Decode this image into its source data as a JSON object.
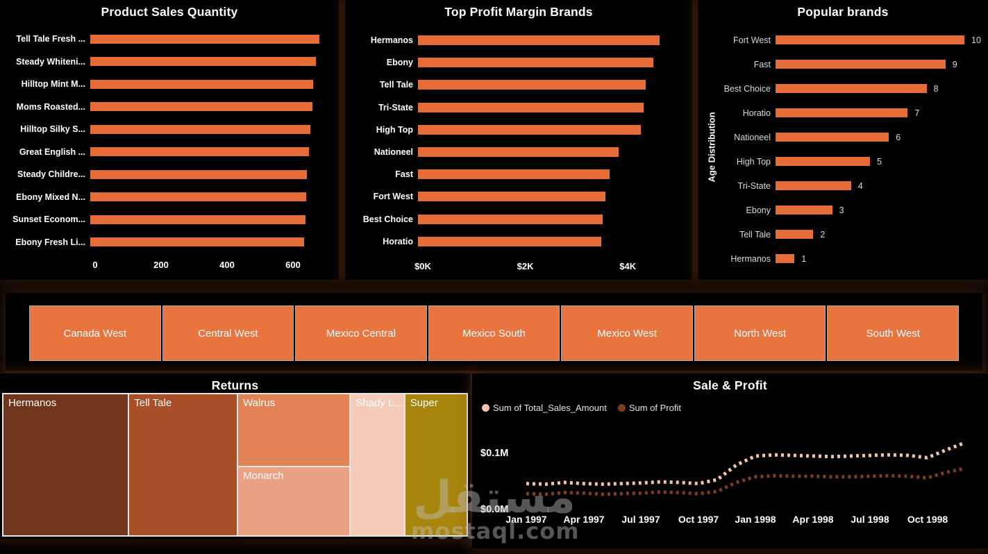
{
  "app": {
    "accent_color": "#E66C37",
    "background_color": "#000000"
  },
  "slicer": {
    "buttons": [
      "Canada West",
      "Central West",
      "Mexico Central",
      "Mexico South",
      "Mexico West",
      "North West",
      "South West"
    ],
    "button_color": "#E8743F"
  },
  "watermark": {
    "arabic": "مستقل",
    "latin": "mostaql.com"
  },
  "chart_data": [
    {
      "id": "product_sales",
      "type": "bar",
      "orientation": "horizontal",
      "title": "Product Sales Quantity",
      "categories": [
        "Tell Tale Fresh ...",
        "Steady Whiteni...",
        "Hilltop Mint M...",
        "Moms Roasted...",
        "Hilltop Silky S...",
        "Great English ...",
        "Steady Childre...",
        "Ebony Mixed N...",
        "Sunset Econom...",
        "Ebony Fresh Li..."
      ],
      "values": [
        695,
        685,
        676,
        673,
        667,
        664,
        657,
        654,
        652,
        648
      ],
      "xticks": {
        "values": [
          0,
          200,
          400,
          600
        ],
        "labels": [
          "0",
          "200",
          "400",
          "600"
        ]
      },
      "xlim": [
        0,
        730
      ],
      "bar_color": "#E66C37",
      "grid": false
    },
    {
      "id": "profit_margin",
      "type": "bar",
      "orientation": "horizontal",
      "title": "Top Profit Margin Brands",
      "categories": [
        "Hermanos",
        "Ebony",
        "Tell Tale",
        "Tri-State",
        "High Top",
        "Nationeel",
        "Fast",
        "Fort West",
        "Best Choice",
        "Horatio"
      ],
      "values": [
        4720,
        4600,
        4450,
        4400,
        4350,
        3910,
        3740,
        3660,
        3600,
        3580
      ],
      "xticks": {
        "values": [
          0,
          2000,
          4000
        ],
        "labels": [
          "$0K",
          "$2K",
          "$4K"
        ]
      },
      "xlim": [
        0,
        5100
      ],
      "bar_color": "#E66C37",
      "grid": false
    },
    {
      "id": "popular_brands",
      "type": "bar",
      "orientation": "horizontal",
      "title": "Popular brands",
      "ylabel": "Age Distribution",
      "categories": [
        "Fort West",
        "Fast",
        "Best Choice",
        "Horatio",
        "Nationeel",
        "High Top",
        "Tri-State",
        "Ebony",
        "Tell Tale",
        "Hermanos"
      ],
      "values": [
        10,
        9,
        8,
        7,
        6,
        5,
        4,
        3,
        2,
        1
      ],
      "data_labels": [
        "10",
        "9",
        "8",
        "7",
        "6",
        "5",
        "4",
        "3",
        "2",
        "1"
      ],
      "xlim": [
        0,
        11
      ],
      "bar_color": "#E66C37",
      "grid": false
    },
    {
      "id": "returns_treemap",
      "type": "treemap",
      "title": "Returns",
      "nodes": [
        {
          "label": "Hermanos",
          "share_pct": 27.2,
          "color": "#70361B"
        },
        {
          "label": "Tell Tale",
          "share_pct": 23.5,
          "color": "#A84E28"
        },
        {
          "label": "Walrus",
          "share_pct": 12.4,
          "color": "#E18355"
        },
        {
          "label": "Monarch",
          "share_pct": 11.9,
          "color": "#EBA184"
        },
        {
          "label": "Shady L...",
          "share_pct": 11.6,
          "color": "#F4CBB8"
        },
        {
          "label": "Super",
          "share_pct": 13.4,
          "color": "#A8860D"
        }
      ]
    },
    {
      "id": "sale_profit",
      "type": "line",
      "title": "Sale & Profit",
      "line_style": "dotted",
      "x": [
        "Jan 1997",
        "Feb 1997",
        "Mar 1997",
        "Apr 1997",
        "May 1997",
        "Jun 1997",
        "Jul 1997",
        "Aug 1997",
        "Sep 1997",
        "Oct 1997",
        "Nov 1997",
        "Dec 1997",
        "Jan 1998",
        "Feb 1998",
        "Mar 1998",
        "Apr 1998",
        "May 1998",
        "Jun 1998",
        "Jul 1998",
        "Aug 1998",
        "Sep 1998",
        "Oct 1998",
        "Nov 1998",
        "Dec 1998"
      ],
      "xticks": [
        "Jan 1997",
        "Apr 1997",
        "Jul 1997",
        "Oct 1997",
        "Jan 1998",
        "Apr 1998",
        "Jul 1998",
        "Oct 1998"
      ],
      "yticks": [
        {
          "label": "$0.0M",
          "value": 0
        },
        {
          "label": "$0.1M",
          "value": 0.1
        }
      ],
      "ylim": [
        0,
        0.125
      ],
      "legend_position": "top-left",
      "series": [
        {
          "name": "Sum of Total_Sales_Amount",
          "color": "#F2C3A7",
          "values": [
            0.045,
            0.044,
            0.047,
            0.045,
            0.044,
            0.045,
            0.046,
            0.048,
            0.047,
            0.045,
            0.052,
            0.078,
            0.094,
            0.096,
            0.095,
            0.094,
            0.093,
            0.094,
            0.095,
            0.096,
            0.095,
            0.091,
            0.105,
            0.118
          ]
        },
        {
          "name": "Sum of Profit",
          "color": "#7E3D1E",
          "values": [
            0.027,
            0.026,
            0.029,
            0.028,
            0.026,
            0.027,
            0.028,
            0.03,
            0.029,
            0.027,
            0.031,
            0.047,
            0.057,
            0.059,
            0.058,
            0.058,
            0.057,
            0.057,
            0.058,
            0.059,
            0.058,
            0.055,
            0.065,
            0.072
          ]
        }
      ]
    }
  ]
}
